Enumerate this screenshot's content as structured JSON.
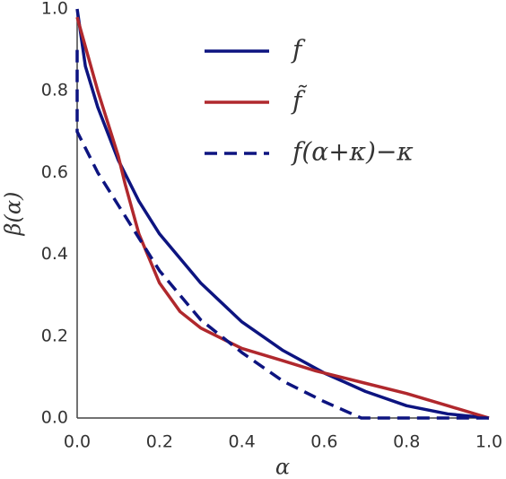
{
  "chart_data": {
    "type": "line",
    "xlabel": "α",
    "ylabel": "β(α)",
    "xlim": [
      0,
      1
    ],
    "ylim": [
      0,
      1
    ],
    "xticks": [
      {
        "value": 0,
        "label": "0.0"
      },
      0.2,
      0.4,
      0.6,
      0.8,
      {
        "value": 1,
        "label": "1.0"
      }
    ],
    "yticks": [
      {
        "value": 0,
        "label": "0.0"
      },
      0.2,
      0.4,
      0.6,
      0.8,
      {
        "value": 1,
        "label": "1.0"
      }
    ],
    "grid": false,
    "legend": "upper right",
    "series": [
      {
        "name": "f",
        "color": "#0d1480",
        "dash": false,
        "x": [
          0,
          0.02,
          0.05,
          0.1,
          0.15,
          0.2,
          0.3,
          0.4,
          0.5,
          0.6,
          0.7,
          0.8,
          0.9,
          1
        ],
        "values": [
          1,
          0.86,
          0.76,
          0.63,
          0.53,
          0.45,
          0.33,
          0.235,
          0.165,
          0.11,
          0.065,
          0.03,
          0.01,
          0
        ]
      },
      {
        "name": "f̃",
        "color": "#b0282d",
        "dash": false,
        "x": [
          0,
          0.05,
          0.1,
          0.117,
          0.15,
          0.2,
          0.25,
          0.3,
          0.4,
          0.5,
          0.58,
          0.7,
          0.8,
          0.9,
          1
        ],
        "values": [
          0.98,
          0.8,
          0.64,
          0.57,
          0.45,
          0.33,
          0.26,
          0.22,
          0.17,
          0.14,
          0.115,
          0.085,
          0.06,
          0.03,
          0
        ]
      },
      {
        "name": "f(α+κ)−κ",
        "color": "#0d1480",
        "dash": true,
        "x": [
          0,
          0,
          0.05,
          0.1,
          0.2,
          0.3,
          0.4,
          0.5,
          0.6,
          0.69,
          0.8,
          1
        ],
        "values": [
          0.9,
          0.7,
          0.6,
          0.52,
          0.36,
          0.24,
          0.16,
          0.09,
          0.04,
          0,
          0,
          0
        ]
      }
    ]
  }
}
